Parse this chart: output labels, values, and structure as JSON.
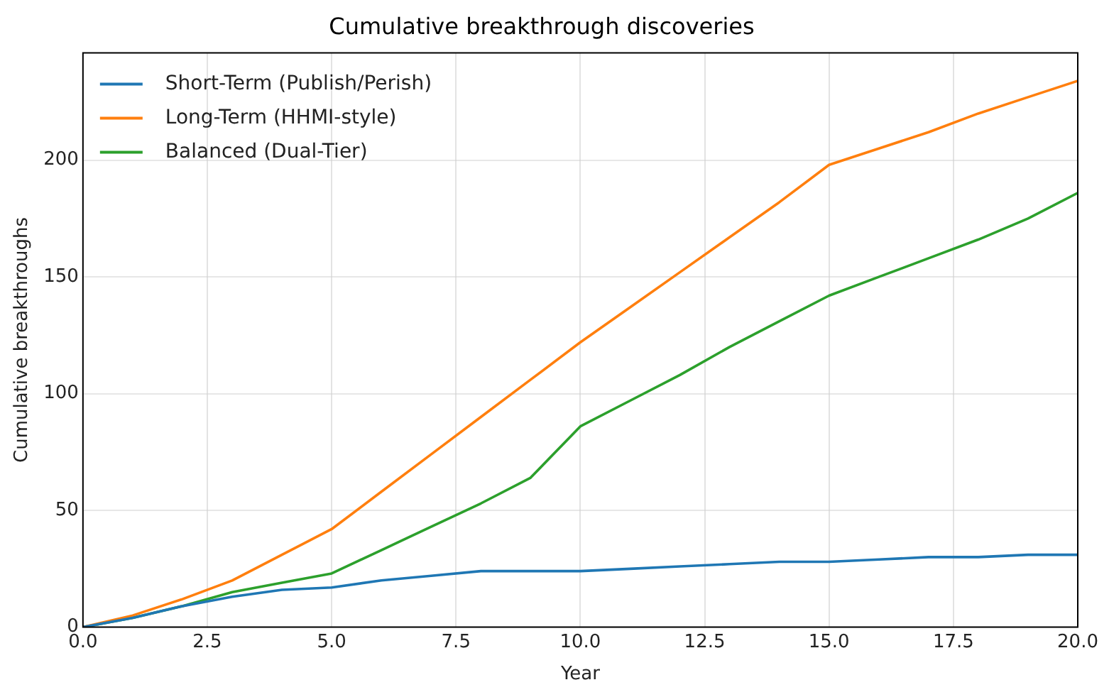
{
  "chart_data": {
    "type": "line",
    "title": "Cumulative breakthrough discoveries",
    "xlabel": "Year",
    "ylabel": "Cumulative breakthroughs",
    "x": [
      0,
      1,
      2,
      3,
      4,
      5,
      6,
      7,
      8,
      9,
      10,
      11,
      12,
      13,
      14,
      15,
      16,
      17,
      18,
      19,
      20
    ],
    "series": [
      {
        "name": "Short-Term (Publish/Perish)",
        "color": "#1f77b4",
        "values": [
          0,
          4,
          9,
          13,
          16,
          17,
          20,
          22,
          24,
          24,
          24,
          25,
          26,
          27,
          28,
          28,
          29,
          30,
          30,
          31,
          31
        ]
      },
      {
        "name": "Long-Term (HHMI-style)",
        "color": "#ff7f0e",
        "values": [
          0,
          5,
          12,
          20,
          31,
          42,
          58,
          74,
          90,
          106,
          122,
          137,
          152,
          167,
          182,
          198,
          205,
          212,
          220,
          227,
          234
        ]
      },
      {
        "name": "Balanced (Dual-Tier)",
        "color": "#2ca02c",
        "values": [
          0,
          4,
          9,
          15,
          19,
          23,
          33,
          43,
          53,
          64,
          86,
          97,
          108,
          120,
          131,
          142,
          150,
          158,
          166,
          175,
          186
        ]
      }
    ],
    "xlim": [
      0,
      20
    ],
    "xticks": [
      {
        "value": 0,
        "label": "0.0"
      },
      {
        "value": 2.5,
        "label": "2.5"
      },
      {
        "value": 5,
        "label": "5.0"
      },
      {
        "value": 7.5,
        "label": "7.5"
      },
      {
        "value": 10,
        "label": "10.0"
      },
      {
        "value": 12.5,
        "label": "12.5"
      },
      {
        "value": 15,
        "label": "15.0"
      },
      {
        "value": 17.5,
        "label": "17.5"
      },
      {
        "value": 20,
        "label": "20.0"
      }
    ],
    "ylim": [
      0,
      246
    ],
    "yticks": [
      0,
      50,
      100,
      150,
      200
    ],
    "grid": true,
    "legend": "top left",
    "marker": "none",
    "line_style": "solid"
  }
}
